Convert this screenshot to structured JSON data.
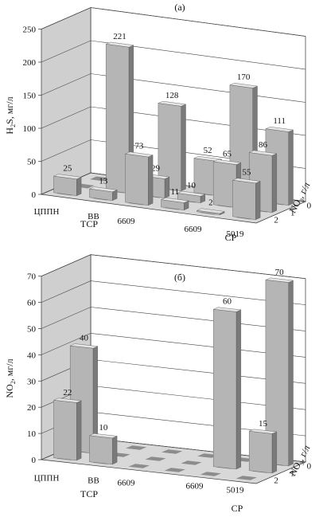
{
  "chart_data": [
    {
      "panel_label": "(а)",
      "type": "bar",
      "ylabel": "H2S, мг/л",
      "ylabel_main": "H",
      "ylabel_sub": "2",
      "ylabel_rest": "S, мг/л",
      "ylim": [
        0,
        250
      ],
      "yticks": [
        "0",
        "50",
        "100",
        "150",
        "200",
        "250"
      ],
      "categories": [
        "ЦППН",
        "ВВ",
        "6609",
        "",
        "6609",
        "5019"
      ],
      "groups": [
        "ТСР",
        "СР"
      ],
      "depth_label": "NO3, г/л",
      "depth_label_main": "NO",
      "depth_label_sub": "3",
      "depth_label_rest": ", г/л",
      "depth_ticks": [
        "0",
        "1",
        "2"
      ],
      "series": [
        {
          "depth": "0",
          "values": [
            null,
            9,
            128,
            52,
            170,
            111
          ]
        },
        {
          "depth": "1",
          "values": [
            null,
            221,
            29,
            10,
            65,
            86
          ]
        },
        {
          "depth": "2",
          "values": [
            25,
            13,
            73,
            11,
            2,
            55
          ]
        }
      ],
      "data_labels": {
        "d0": [
          "",
          "9",
          "128",
          "52",
          "170",
          "111"
        ],
        "d1": [
          "",
          "221",
          "29",
          "10",
          "65",
          "86"
        ],
        "d2": [
          "25",
          "13",
          "73",
          "11",
          "2",
          "55"
        ]
      }
    },
    {
      "panel_label": "(б)",
      "type": "bar",
      "ylabel": "NO2, мг/л",
      "ylabel_main": "NO",
      "ylabel_sub": "2",
      "ylabel_rest": ", мг/л",
      "ylim": [
        0,
        70
      ],
      "yticks": [
        "0",
        "10",
        "20",
        "30",
        "40",
        "50",
        "60",
        "70"
      ],
      "categories": [
        "ЦППН",
        "ВВ",
        "6609",
        "",
        "6609",
        "5019"
      ],
      "groups": [
        "ТСР",
        "СР"
      ],
      "depth_label": "NO3, г/л",
      "depth_label_main": "NO",
      "depth_label_sub": "3",
      "depth_label_rest": ", г/л",
      "depth_ticks": [
        "0",
        "1",
        "2"
      ],
      "series": [
        {
          "depth": "0",
          "values": [
            null,
            null,
            null,
            null,
            null,
            70
          ]
        },
        {
          "depth": "1",
          "values": [
            40,
            null,
            null,
            null,
            60,
            15
          ]
        },
        {
          "depth": "2",
          "values": [
            22,
            10,
            null,
            null,
            null,
            null
          ]
        }
      ],
      "data_labels": {
        "d0": [
          "",
          "",
          "",
          "",
          "",
          "70"
        ],
        "d1": [
          "40",
          "",
          "",
          "",
          "60",
          "15"
        ],
        "d2": [
          "22",
          "10",
          "",
          "",
          "",
          ""
        ]
      }
    }
  ]
}
